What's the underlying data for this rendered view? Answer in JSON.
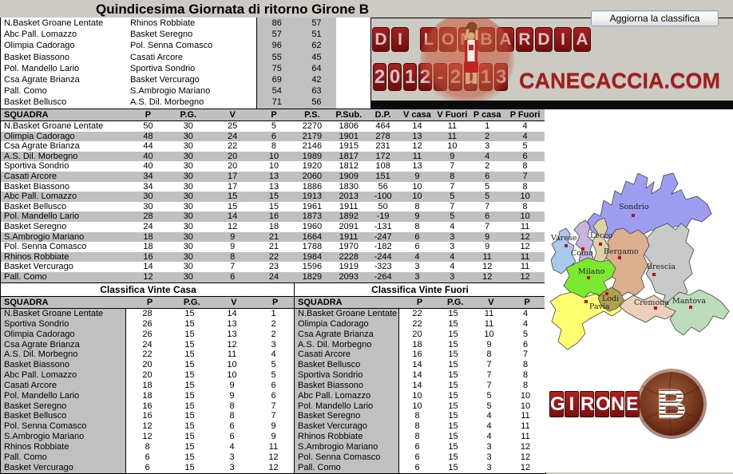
{
  "page": {
    "title": "Quindicesima Giornata di ritorno Girone B",
    "update_button": "Aggiorna la classifica"
  },
  "results": {
    "rows": [
      [
        "N.Basket Groane Lentate",
        "Rhinos Robbiate",
        "86",
        "57"
      ],
      [
        "Abc Pall. Lomazzo",
        "Basket Seregno",
        "57",
        "51"
      ],
      [
        "Olimpia Cadorago",
        "Pol. Senna Comasco",
        "96",
        "62"
      ],
      [
        "Basket Biassono",
        "Casati Arcore",
        "55",
        "45"
      ],
      [
        "Pol. Mandello Lario",
        "Sportiva Sondrio",
        "75",
        "64"
      ],
      [
        "Csa Agrate Brianza",
        "Basket Vercurago",
        "69",
        "42"
      ],
      [
        "Pall. Como",
        "S.Ambrogio Mariano",
        "54",
        "63"
      ],
      [
        "Basket Bellusco",
        "A.S. Dil. Morbegno",
        "71",
        "56"
      ]
    ]
  },
  "standings": {
    "headers": [
      "SQUADRA",
      "P",
      "P.G.",
      "V",
      "P",
      "P.S.",
      "P.Sub.",
      "D.P.",
      "V casa",
      "V Fuori",
      "P casa",
      "P Fuori"
    ],
    "rows": [
      [
        "N.Basket Groane Lentate",
        "50",
        "30",
        "25",
        "5",
        "2270",
        "1806",
        "464",
        "14",
        "11",
        "1",
        "4"
      ],
      [
        "Olimpia Cadorago",
        "48",
        "30",
        "24",
        "6",
        "2179",
        "1901",
        "278",
        "13",
        "11",
        "2",
        "4"
      ],
      [
        "Csa Agrate Brianza",
        "44",
        "30",
        "22",
        "8",
        "2146",
        "1915",
        "231",
        "12",
        "10",
        "3",
        "5"
      ],
      [
        "A.S. Dil. Morbegno",
        "40",
        "30",
        "20",
        "10",
        "1989",
        "1817",
        "172",
        "11",
        "9",
        "4",
        "6"
      ],
      [
        "Sportiva Sondrio",
        "40",
        "30",
        "20",
        "10",
        "1920",
        "1812",
        "108",
        "13",
        "7",
        "2",
        "8"
      ],
      [
        "Casati Arcore",
        "34",
        "30",
        "17",
        "13",
        "2060",
        "1909",
        "151",
        "9",
        "8",
        "6",
        "7"
      ],
      [
        "Basket Biassono",
        "34",
        "30",
        "17",
        "13",
        "1886",
        "1830",
        "56",
        "10",
        "7",
        "5",
        "8"
      ],
      [
        "Abc Pall. Lomazzo",
        "30",
        "30",
        "15",
        "15",
        "1913",
        "2013",
        "-100",
        "10",
        "5",
        "5",
        "10"
      ],
      [
        "Basket Bellusco",
        "30",
        "30",
        "15",
        "15",
        "1961",
        "1911",
        "50",
        "8",
        "7",
        "7",
        "8"
      ],
      [
        "Pol. Mandello Lario",
        "28",
        "30",
        "14",
        "16",
        "1873",
        "1892",
        "-19",
        "9",
        "5",
        "6",
        "10"
      ],
      [
        "Basket Seregno",
        "24",
        "30",
        "12",
        "18",
        "1960",
        "2091",
        "-131",
        "8",
        "4",
        "7",
        "11"
      ],
      [
        "S.Ambrogio Mariano",
        "18",
        "30",
        "9",
        "21",
        "1664",
        "1911",
        "-247",
        "6",
        "3",
        "9",
        "12"
      ],
      [
        "Pol. Senna Comasco",
        "18",
        "30",
        "9",
        "21",
        "1788",
        "1970",
        "-182",
        "6",
        "3",
        "9",
        "12"
      ],
      [
        "Rhinos Robbiate",
        "16",
        "30",
        "8",
        "22",
        "1984",
        "2228",
        "-244",
        "4",
        "4",
        "11",
        "11"
      ],
      [
        "Basket Vercurago",
        "14",
        "30",
        "7",
        "23",
        "1596",
        "1919",
        "-323",
        "3",
        "4",
        "12",
        "11"
      ],
      [
        "Pall. Como",
        "12",
        "30",
        "6",
        "24",
        "1829",
        "2093",
        "-264",
        "3",
        "3",
        "12",
        "12"
      ]
    ]
  },
  "home_table": {
    "title": "Classifica Vinte Casa",
    "headers": [
      "SQUADRA",
      "P",
      "P.G.",
      "V",
      "P"
    ],
    "rows": [
      [
        "N.Basket Groane Lentate",
        "28",
        "15",
        "14",
        "1"
      ],
      [
        "Sportiva Sondrio",
        "26",
        "15",
        "13",
        "2"
      ],
      [
        "Olimpia Cadorago",
        "26",
        "15",
        "13",
        "2"
      ],
      [
        "Csa Agrate Brianza",
        "24",
        "15",
        "12",
        "3"
      ],
      [
        "A.S. Dil. Morbegno",
        "22",
        "15",
        "11",
        "4"
      ],
      [
        "Basket Biassono",
        "20",
        "15",
        "10",
        "5"
      ],
      [
        "Abc Pall. Lomazzo",
        "20",
        "15",
        "10",
        "5"
      ],
      [
        "Casati Arcore",
        "18",
        "15",
        "9",
        "6"
      ],
      [
        "Pol. Mandello Lario",
        "18",
        "15",
        "9",
        "6"
      ],
      [
        "Basket Seregno",
        "16",
        "15",
        "8",
        "7"
      ],
      [
        "Basket Bellusco",
        "16",
        "15",
        "8",
        "7"
      ],
      [
        "Pol. Senna Comasco",
        "12",
        "15",
        "6",
        "9"
      ],
      [
        "S.Ambrogio Mariano",
        "12",
        "15",
        "6",
        "9"
      ],
      [
        "Rhinos Robbiate",
        "8",
        "15",
        "4",
        "11"
      ],
      [
        "Pall. Como",
        "6",
        "15",
        "3",
        "12"
      ],
      [
        "Basket Vercurago",
        "6",
        "15",
        "3",
        "12"
      ]
    ]
  },
  "away_table": {
    "title": "Classifica Vinte Fuori",
    "headers": [
      "SQUADRA",
      "P",
      "P.G.",
      "V",
      "P"
    ],
    "rows": [
      [
        "N.Basket Groane Lentate",
        "22",
        "15",
        "11",
        "4"
      ],
      [
        "Olimpia Cadorago",
        "22",
        "15",
        "11",
        "4"
      ],
      [
        "Csa Agrate Brianza",
        "20",
        "15",
        "10",
        "5"
      ],
      [
        "A.S. Dil. Morbegno",
        "18",
        "15",
        "9",
        "6"
      ],
      [
        "Casati Arcore",
        "16",
        "15",
        "8",
        "7"
      ],
      [
        "Basket Bellusco",
        "14",
        "15",
        "7",
        "8"
      ],
      [
        "Sportiva Sondrio",
        "14",
        "15",
        "7",
        "8"
      ],
      [
        "Basket Biassono",
        "14",
        "15",
        "7",
        "8"
      ],
      [
        "Abc Pall. Lomazzo",
        "10",
        "15",
        "5",
        "10"
      ],
      [
        "Pol. Mandello Lario",
        "10",
        "15",
        "5",
        "10"
      ],
      [
        "Basket Seregno",
        "8",
        "15",
        "4",
        "11"
      ],
      [
        "Basket Vercurago",
        "8",
        "15",
        "4",
        "11"
      ],
      [
        "Rhinos Robbiate",
        "8",
        "15",
        "4",
        "11"
      ],
      [
        "S.Ambrogio Mariano",
        "6",
        "15",
        "3",
        "12"
      ],
      [
        "Pol. Senna Comasco",
        "6",
        "15",
        "3",
        "12"
      ],
      [
        "Pall. Como",
        "6",
        "15",
        "3",
        "12"
      ]
    ]
  },
  "banner": {
    "line1": "DI LOMBARDIA",
    "line2": "2012-2013",
    "site": "CANECACCIA.COM"
  },
  "map": {
    "provinces": [
      {
        "name": "Sondrio",
        "color": "#9d9df2",
        "dot": [
          111,
          133
        ],
        "label": [
          93,
          125
        ]
      },
      {
        "name": "Brescia",
        "color": "#c9c9c9",
        "dot": [
          137,
          207
        ],
        "label": [
          128,
          200
        ]
      },
      {
        "name": "Bergamo",
        "color": "#dcaf8f",
        "dot": [
          94,
          186
        ],
        "label": [
          74,
          181
        ]
      },
      {
        "name": "Lecco",
        "color": "#dcd0a8",
        "dot": [
          70,
          169
        ],
        "label": [
          57,
          161
        ]
      },
      {
        "name": "Como",
        "color": "#c8b4e0",
        "dot": [
          48,
          175
        ],
        "label": [
          33,
          183
        ]
      },
      {
        "name": "Varese",
        "color": "#a8c8ec",
        "dot": [
          27,
          171
        ],
        "label": [
          8,
          164
        ]
      },
      {
        "name": "Milano",
        "color": "#7ce830",
        "dot": [
          55,
          211
        ],
        "label": [
          42,
          206
        ]
      },
      {
        "name": "Pavia",
        "color": "#ffff72",
        "dot": [
          52,
          241
        ],
        "label": [
          56,
          250
        ]
      },
      {
        "name": "Lodi",
        "color": "#b0a050",
        "dot": [
          78,
          231
        ],
        "label": [
          72,
          240
        ]
      },
      {
        "name": "Cremona",
        "color": "#edd0bc",
        "dot": [
          139,
          249
        ],
        "label": [
          112,
          245
        ]
      },
      {
        "name": "Mantova",
        "color": "#bcdcbc",
        "dot": [
          183,
          248
        ],
        "label": [
          160,
          243
        ]
      }
    ]
  },
  "girone": {
    "word": "GIRONE",
    "letter": "B"
  },
  "colors": {
    "accent_red": "#9e1e1e",
    "silver": "#c0c0c0",
    "page_bg": "#cdcac4"
  }
}
